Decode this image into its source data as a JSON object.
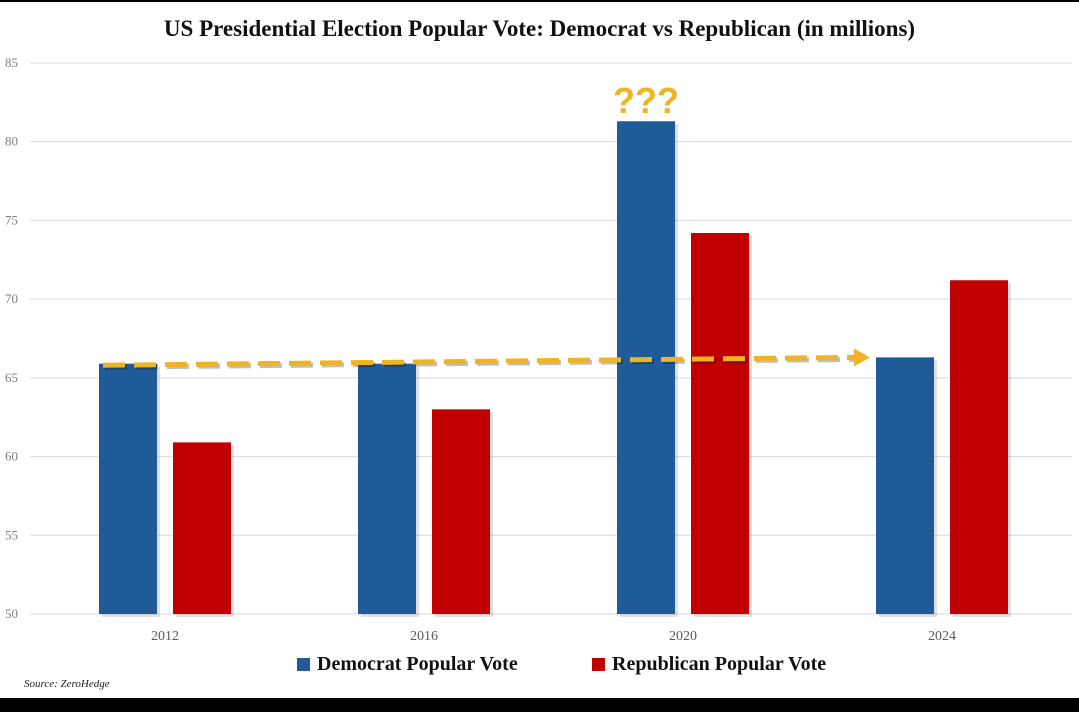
{
  "chart_data": {
    "type": "bar",
    "title": "US Presidential Election Popular Vote: Democrat vs Republican (in millions)",
    "categories": [
      "2012",
      "2016",
      "2020",
      "2024"
    ],
    "series": [
      {
        "name": "Democrat Popular Vote",
        "color": "#1f5b99",
        "values": [
          65.9,
          65.9,
          81.3,
          66.3
        ]
      },
      {
        "name": "Republican Popular Vote",
        "color": "#c00000",
        "values": [
          60.9,
          63.0,
          74.2,
          71.2
        ]
      }
    ],
    "ylim": [
      50,
      85
    ],
    "yticks": [
      "50",
      "55",
      "60",
      "65",
      "70",
      "75",
      "80",
      "85"
    ],
    "grid": true,
    "annotations": [
      {
        "type": "text",
        "text": "???",
        "category": "2020",
        "series": "Democrat Popular Vote",
        "color": "#f0b323"
      },
      {
        "type": "arrow",
        "from_category": "2012",
        "to_category": "2024",
        "from_value": 65.8,
        "to_value": 66.3,
        "style": "dashed",
        "color": "#f0b323"
      }
    ],
    "legend_position": "bottom-center"
  },
  "source": "Source: ZeroHedge"
}
